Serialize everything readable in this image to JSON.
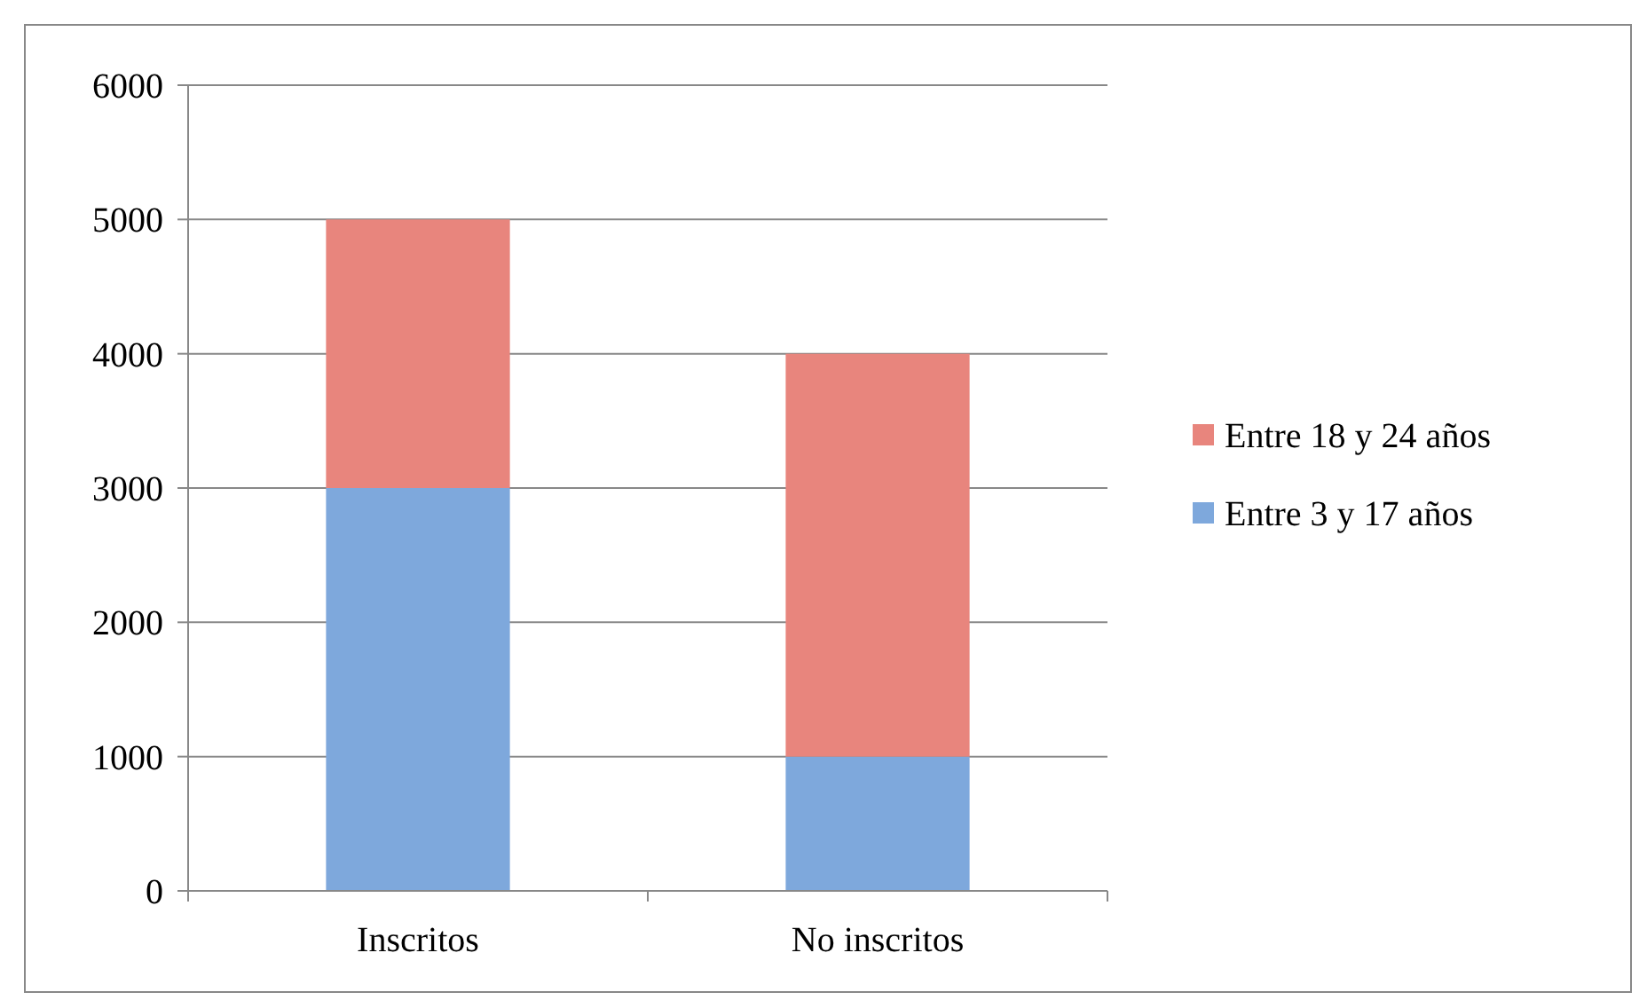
{
  "chart_data": {
    "type": "bar",
    "stacked": true,
    "categories": [
      "Inscritos",
      "No inscritos"
    ],
    "series": [
      {
        "name": "Entre 3 y 17 años",
        "color": "#7ea8dc",
        "values": [
          3000,
          1000
        ]
      },
      {
        "name": "Entre 18 y 24 años",
        "color": "#e8857d",
        "values": [
          2000,
          3000
        ]
      }
    ],
    "ylim": [
      0,
      6000
    ],
    "yticks": [
      0,
      1000,
      2000,
      3000,
      4000,
      5000,
      6000
    ],
    "grid": "y",
    "legend": "right"
  }
}
